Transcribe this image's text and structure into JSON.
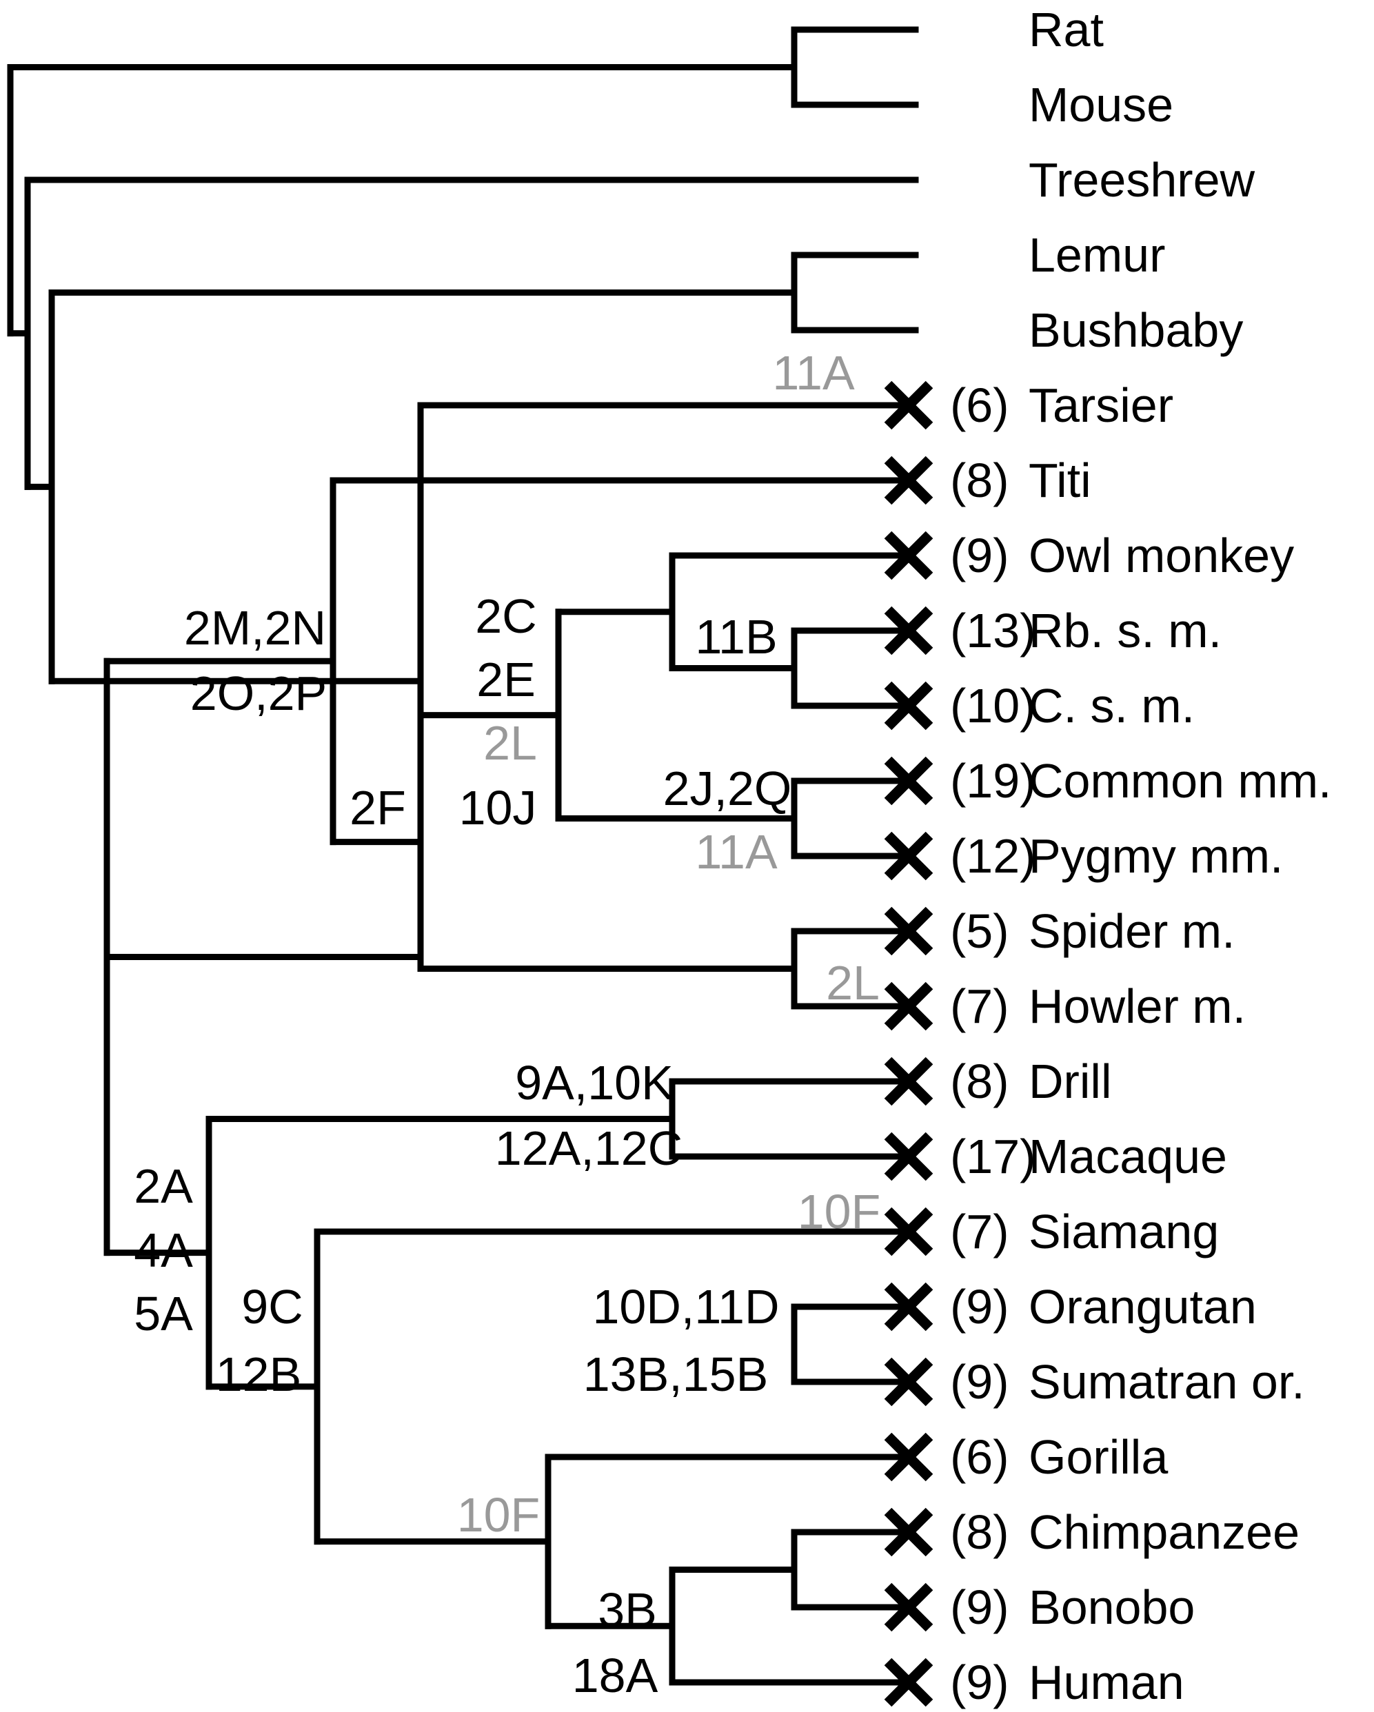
{
  "colors": {
    "line": "#000000",
    "text": "#000000",
    "grey_label": "#999999"
  },
  "taxa": [
    {
      "id": "rat",
      "name": "Rat",
      "count": "",
      "marked": false
    },
    {
      "id": "mouse",
      "name": "Mouse",
      "count": "",
      "marked": false
    },
    {
      "id": "treeshrew",
      "name": "Treeshrew",
      "count": "",
      "marked": false
    },
    {
      "id": "lemur",
      "name": "Lemur",
      "count": "",
      "marked": false
    },
    {
      "id": "bushbaby",
      "name": "Bushbaby",
      "count": "",
      "marked": false
    },
    {
      "id": "tarsier",
      "name": "Tarsier",
      "count": "(6)",
      "marked": true
    },
    {
      "id": "titi",
      "name": "Titi",
      "count": "(8)",
      "marked": true
    },
    {
      "id": "owl-monkey",
      "name": "Owl monkey",
      "count": "(9)",
      "marked": true
    },
    {
      "id": "rb-s-m",
      "name": "Rb. s. m.",
      "count": "(13)",
      "marked": true
    },
    {
      "id": "c-s-m",
      "name": "C. s. m.",
      "count": "(10)",
      "marked": true
    },
    {
      "id": "common-mm",
      "name": "Common mm.",
      "count": "(19)",
      "marked": true
    },
    {
      "id": "pygmy-mm",
      "name": "Pygmy mm.",
      "count": "(12)",
      "marked": true
    },
    {
      "id": "spider-m",
      "name": "Spider m.",
      "count": "(5)",
      "marked": true
    },
    {
      "id": "howler-m",
      "name": "Howler m.",
      "count": "(7)",
      "marked": true
    },
    {
      "id": "drill",
      "name": "Drill",
      "count": "(8)",
      "marked": true
    },
    {
      "id": "macaque",
      "name": "Macaque",
      "count": "(17)",
      "marked": true
    },
    {
      "id": "siamang",
      "name": "Siamang",
      "count": "(7)",
      "marked": true
    },
    {
      "id": "orangutan",
      "name": "Orangutan",
      "count": "(9)",
      "marked": true
    },
    {
      "id": "sumatran-or",
      "name": "Sumatran or.",
      "count": "(9)",
      "marked": true
    },
    {
      "id": "gorilla",
      "name": "Gorilla",
      "count": "(6)",
      "marked": true
    },
    {
      "id": "chimpanzee",
      "name": "Chimpanzee",
      "count": "(8)",
      "marked": true
    },
    {
      "id": "bonobo",
      "name": "Bonobo",
      "count": "(9)",
      "marked": true
    },
    {
      "id": "human",
      "name": "Human",
      "count": "(9)",
      "marked": true
    }
  ],
  "branch_labels": [
    {
      "id": "tarsier-11a",
      "text": "11A",
      "grey": true
    },
    {
      "id": "nwm-2m2n",
      "text": "2M,2N",
      "grey": false
    },
    {
      "id": "nwm-2o2p",
      "text": "2O,2P",
      "grey": false
    },
    {
      "id": "aotidae-2c",
      "text": "2C",
      "grey": false
    },
    {
      "id": "aotidae-2e",
      "text": "2E",
      "grey": false
    },
    {
      "id": "aotidae-2l",
      "text": "2L",
      "grey": true
    },
    {
      "id": "aotidae-10j",
      "text": "10J",
      "grey": false
    },
    {
      "id": "saimiri-11b",
      "text": "11B",
      "grey": false
    },
    {
      "id": "marmoset-2j2q",
      "text": "2J,2Q",
      "grey": false
    },
    {
      "id": "marmoset-11a",
      "text": "11A",
      "grey": true
    },
    {
      "id": "atelid-2f",
      "text": "2F",
      "grey": false
    },
    {
      "id": "atelid-2l",
      "text": "2L",
      "grey": true
    },
    {
      "id": "papionini-9a10k",
      "text": "9A,10K",
      "grey": false
    },
    {
      "id": "papionini-12a12c",
      "text": "12A,12C",
      "grey": false
    },
    {
      "id": "catarrhini-2a",
      "text": "2A",
      "grey": false
    },
    {
      "id": "catarrhini-4a",
      "text": "4A",
      "grey": false
    },
    {
      "id": "catarrhini-5a",
      "text": "5A",
      "grey": false
    },
    {
      "id": "hominoid-9c",
      "text": "9C",
      "grey": false
    },
    {
      "id": "hominoid-12b",
      "text": "12B",
      "grey": false
    },
    {
      "id": "siamang-10f",
      "text": "10F",
      "grey": true
    },
    {
      "id": "pongo-10d11d",
      "text": "10D,11D",
      "grey": false
    },
    {
      "id": "pongo-13b15b",
      "text": "13B,15B",
      "grey": false
    },
    {
      "id": "hominine-10f",
      "text": "10F",
      "grey": true
    },
    {
      "id": "pan-human-3b",
      "text": "3B",
      "grey": false
    },
    {
      "id": "pan-human-18a",
      "text": "18A",
      "grey": false
    }
  ]
}
